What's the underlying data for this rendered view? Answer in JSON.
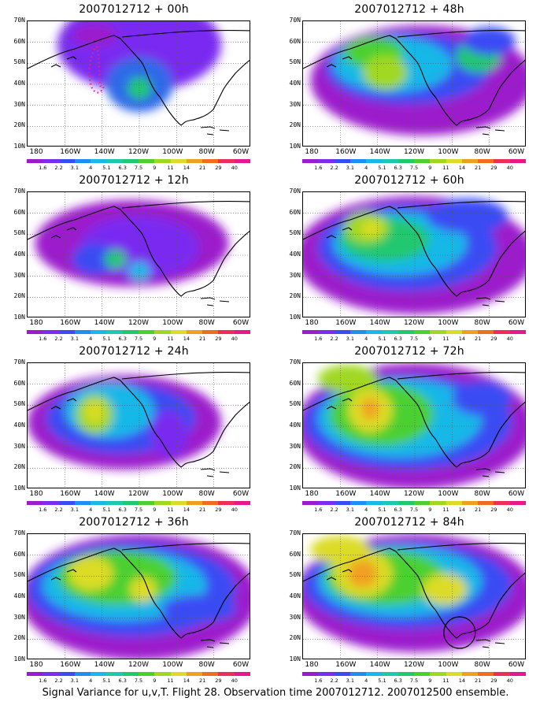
{
  "caption": "Signal Variance for u,v,T. Flight 28. Observation time 2007012712. 2007012500 ensemble.",
  "panels": [
    {
      "title": "2007012712 + 00h",
      "marker": "dots"
    },
    {
      "title": "2007012712 + 48h",
      "marker": "none"
    },
    {
      "title": "2007012712 + 12h",
      "marker": "none"
    },
    {
      "title": "2007012712 + 60h",
      "marker": "none"
    },
    {
      "title": "2007012712 + 24h",
      "marker": "none"
    },
    {
      "title": "2007012712 + 72h",
      "marker": "none"
    },
    {
      "title": "2007012712 + 36h",
      "marker": "none"
    },
    {
      "title": "2007012712 + 84h",
      "marker": "circle"
    }
  ],
  "lat_labels": [
    "70N",
    "60N",
    "50N",
    "40N",
    "30N",
    "20N",
    "10N"
  ],
  "lon_labels": [
    "180",
    "160W",
    "140W",
    "120W",
    "100W",
    "80W",
    "60W"
  ],
  "colorbar_labels": [
    "1.6",
    "2.2",
    "3.1",
    "4",
    "5.1",
    "6.3",
    "7.5",
    "9",
    "11",
    "14",
    "21",
    "29",
    "40"
  ],
  "colorbar_colors": [
    "#9c1ccc",
    "#7a2cf0",
    "#3a4cf4",
    "#1f8ef2",
    "#18b8e8",
    "#1cc8b0",
    "#20c870",
    "#4cd030",
    "#a0d820",
    "#dcdc28",
    "#f0a020",
    "#f06c20",
    "#f02c58",
    "#e8188c"
  ]
}
